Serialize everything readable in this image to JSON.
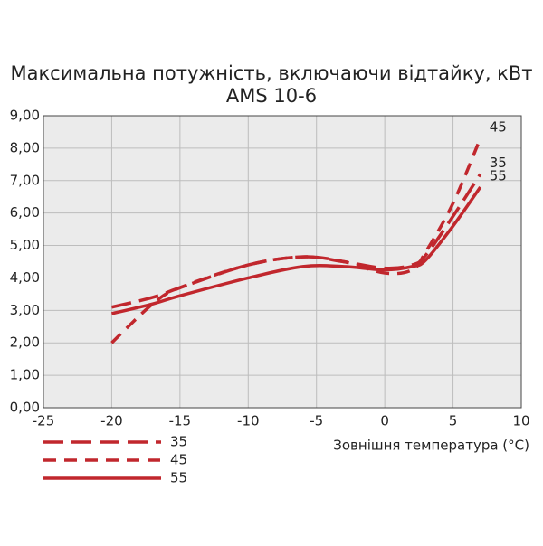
{
  "chart_data": {
    "type": "line",
    "title": "Максимальна потужність, включаючи відтайку, кВт",
    "subtitle": "AMS 10-6",
    "x_label": "Зовнішня температура (°C)",
    "x": [
      -20,
      -17,
      -15,
      -10,
      -6,
      -3,
      0,
      2,
      3,
      5,
      7
    ],
    "series": [
      {
        "name": "35",
        "color": "#c1272d",
        "dash": "long-dash",
        "values": [
          3.1,
          3.4,
          3.7,
          4.4,
          4.65,
          4.5,
          4.3,
          4.4,
          4.7,
          5.9,
          7.2
        ]
      },
      {
        "name": "45",
        "color": "#c1272d",
        "dash": "dash",
        "values": [
          2.0,
          3.2,
          3.7,
          4.4,
          4.65,
          4.5,
          4.15,
          4.25,
          4.8,
          6.3,
          8.3
        ]
      },
      {
        "name": "55",
        "color": "#c1272d",
        "dash": "solid",
        "values": [
          2.9,
          3.2,
          3.45,
          4.0,
          4.35,
          4.35,
          4.25,
          4.35,
          4.55,
          5.6,
          6.8
        ]
      }
    ],
    "xlim": [
      -25,
      10
    ],
    "xticks": [
      -25,
      -20,
      -15,
      -10,
      -5,
      0,
      5,
      10
    ],
    "ylim": [
      0,
      9
    ],
    "yticks": [
      {
        "value": 0,
        "label": "0,00"
      },
      {
        "value": 1,
        "label": "1,00"
      },
      {
        "value": 2,
        "label": "2,00"
      },
      {
        "value": 3,
        "label": "3,00"
      },
      {
        "value": 4,
        "label": "4,00"
      },
      {
        "value": 5,
        "label": "5,00"
      },
      {
        "value": 6,
        "label": "6,00"
      },
      {
        "value": 7,
        "label": "7,00"
      },
      {
        "value": 8,
        "label": "8,00"
      },
      {
        "value": 9,
        "label": "9,00"
      }
    ],
    "grid": true,
    "legend": "bottom-left"
  }
}
